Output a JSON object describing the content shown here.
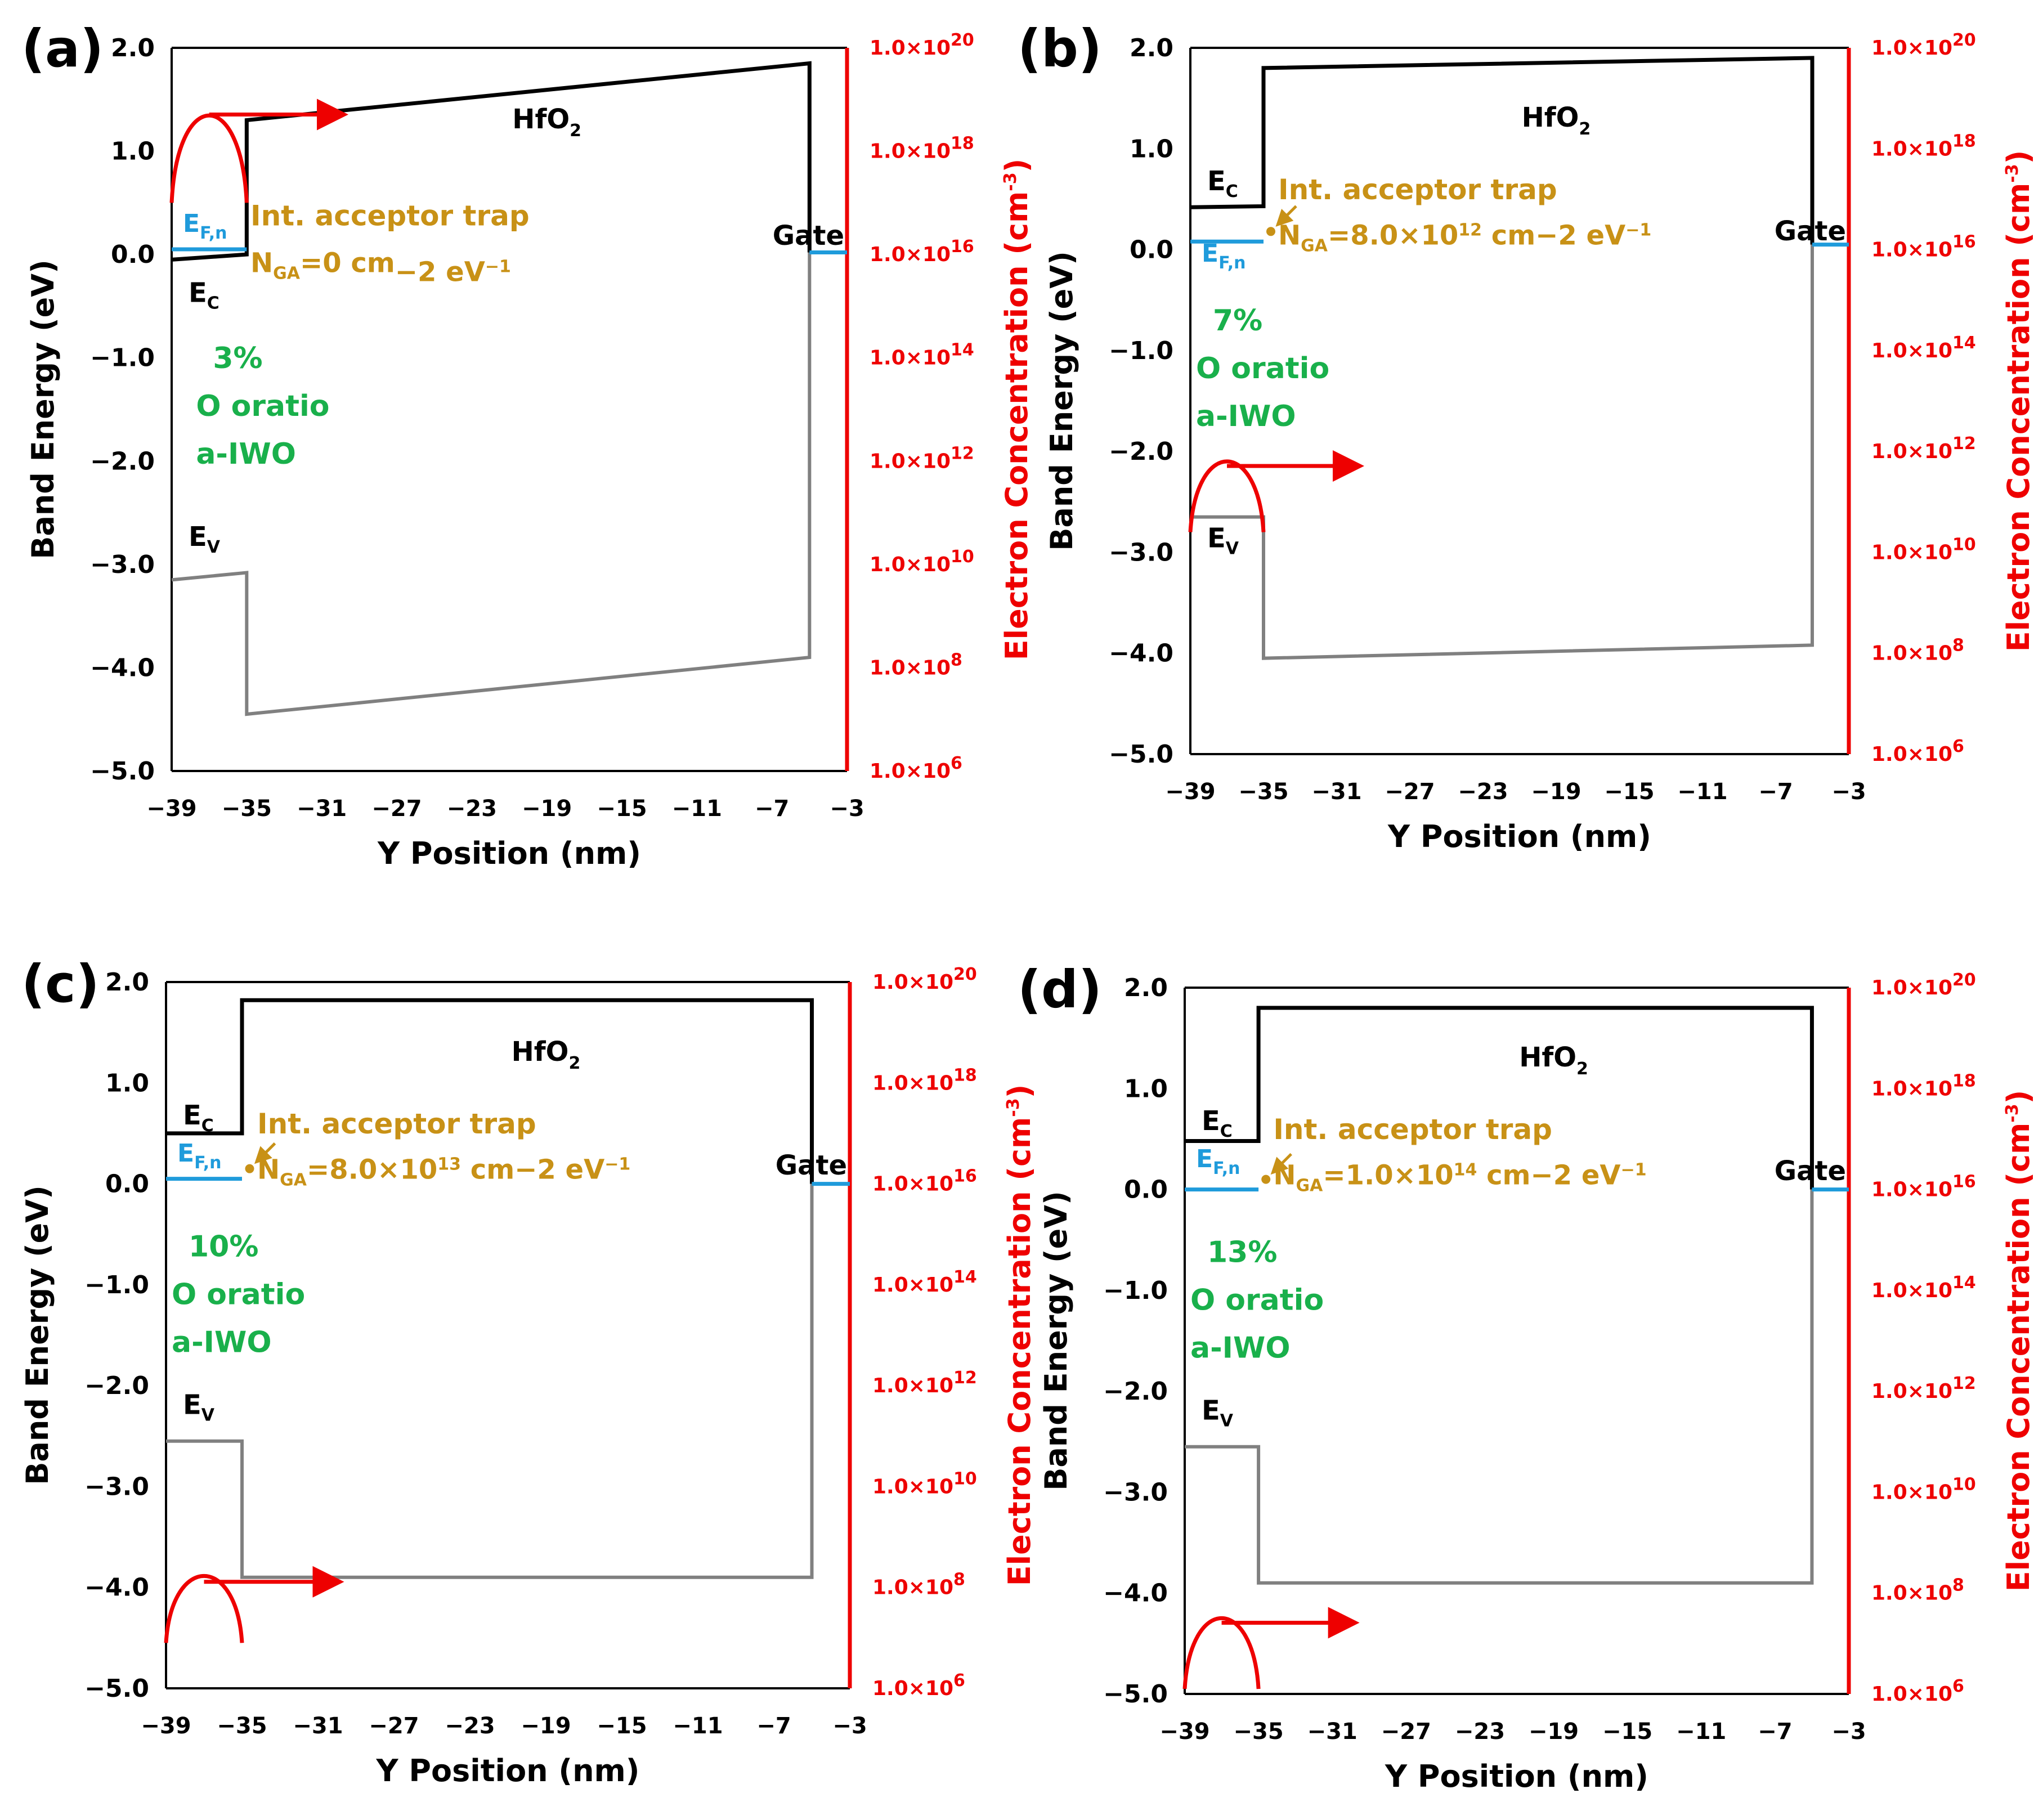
{
  "figure": {
    "axis_titles": {
      "xlabel": "Y Position (nm)",
      "ylabel": "Band Energy (eV)",
      "y2label": "Electron Concentration (cm",
      "y2label_exp": "-3",
      "y2label_close": ")"
    },
    "annotation_text": {
      "hfo2": "HfO",
      "hfo2_sub": "2",
      "ec": "E",
      "ec_sub": "C",
      "ev": "E",
      "ev_sub": "V",
      "efn": "E",
      "efn_sub": "F,n",
      "gate": "Gate",
      "trap_line1": "Int. acceptor trap",
      "nga_n": "N",
      "nga_sub": "GA",
      "o_ratio": "O oratio",
      "material": "a-IWO"
    }
  },
  "colors": {
    "conduction_band": "#000000",
    "valence_band": "#808080",
    "fermi_level": "#1f9bdb",
    "electron_concentration": "#ee0000",
    "trap_annotation": "#c89116",
    "oxygen_label": "#19b04b"
  },
  "chart_data": [
    {
      "panel": "(a)",
      "type": "line",
      "xlabel": "Y Position (nm)",
      "ylabel": "Band Energy (eV)",
      "y2label": "Electron Concentration (cm-3)",
      "xlim": [
        -39,
        -3
      ],
      "ylim": [
        -5,
        2
      ],
      "x_ticks": [
        "−39",
        "−35",
        "−31",
        "−27",
        "−23",
        "−19",
        "−15",
        "−11",
        "−7",
        "−3"
      ],
      "y_ticks": [
        "2.0",
        "1.0",
        "0.0",
        "−1.0",
        "−2.0",
        "−3.0",
        "−4.0",
        "−5.0"
      ],
      "y2_ticks": [
        {
          "mant": "1.0×10",
          "exp": "20"
        },
        {
          "mant": "1.0×10",
          "exp": "18"
        },
        {
          "mant": "1.0×10",
          "exp": "16"
        },
        {
          "mant": "1.0×10",
          "exp": "14"
        },
        {
          "mant": "1.0×10",
          "exp": "12"
        },
        {
          "mant": "1.0×10",
          "exp": "10"
        },
        {
          "mant": "1.0×10",
          "exp": "8"
        },
        {
          "mant": "1.0×10",
          "exp": "6"
        }
      ],
      "o_ratio_percent": "3%",
      "nga_value": "=0 cm",
      "nga_exp": "",
      "nga_units": "−2",
      "nga_ev": " eV",
      "nga_ev_exp": "−1",
      "series": [
        {
          "name": "E_C",
          "x": [
            -39,
            -35,
            -35,
            -5,
            -5
          ],
          "y": [
            -0.05,
            0.0,
            1.3,
            1.85,
            0.02
          ]
        },
        {
          "name": "E_V",
          "x": [
            -39,
            -35,
            -35,
            -5,
            -5
          ],
          "y": [
            -3.15,
            -3.08,
            -4.45,
            -3.9,
            0.02
          ]
        },
        {
          "name": "E_F,n",
          "x": [
            -39,
            -35
          ],
          "y": [
            0.05,
            0.05
          ]
        },
        {
          "name": "E_F,gate",
          "x": [
            -5,
            -3
          ],
          "y": [
            0.02,
            0.02
          ]
        }
      ]
    },
    {
      "panel": "(b)",
      "type": "line",
      "xlabel": "Y Position (nm)",
      "ylabel": "Band Energy (eV)",
      "y2label": "Electron Concentration (cm-3)",
      "xlim": [
        -39,
        -3
      ],
      "ylim": [
        -5,
        2
      ],
      "x_ticks": [
        "−39",
        "−35",
        "−31",
        "−27",
        "−23",
        "−19",
        "−15",
        "−11",
        "−7",
        "−3"
      ],
      "y_ticks": [
        "2.0",
        "1.0",
        "0.0",
        "−1.0",
        "−2.0",
        "−3.0",
        "−4.0",
        "−5.0"
      ],
      "y2_ticks": [
        {
          "mant": "1.0×10",
          "exp": "20"
        },
        {
          "mant": "1.0×10",
          "exp": "18"
        },
        {
          "mant": "1.0×10",
          "exp": "16"
        },
        {
          "mant": "1.0×10",
          "exp": "14"
        },
        {
          "mant": "1.0×10",
          "exp": "12"
        },
        {
          "mant": "1.0×10",
          "exp": "10"
        },
        {
          "mant": "1.0×10",
          "exp": "8"
        },
        {
          "mant": "1.0×10",
          "exp": "6"
        }
      ],
      "o_ratio_percent": "7%",
      "nga_value": "=8.0×10",
      "nga_exp": "12",
      "nga_units": " cm−2",
      "nga_ev": " eV",
      "nga_ev_exp": "−1",
      "series": [
        {
          "name": "E_C",
          "x": [
            -39,
            -35,
            -35,
            -5,
            -5
          ],
          "y": [
            0.42,
            0.43,
            1.8,
            1.9,
            0.05
          ]
        },
        {
          "name": "E_V",
          "x": [
            -39,
            -35,
            -35,
            -5,
            -5
          ],
          "y": [
            -2.65,
            -2.65,
            -4.05,
            -3.92,
            0.05
          ]
        },
        {
          "name": "E_F,n",
          "x": [
            -39,
            -35
          ],
          "y": [
            0.08,
            0.08
          ]
        },
        {
          "name": "E_F,gate",
          "x": [
            -5,
            -3
          ],
          "y": [
            0.05,
            0.05
          ]
        }
      ]
    },
    {
      "panel": "(c)",
      "type": "line",
      "xlabel": "Y Position (nm)",
      "ylabel": "Band Energy (eV)",
      "y2label": "Electron Concentration (cm-3)",
      "xlim": [
        -39,
        -3
      ],
      "ylim": [
        -5,
        2
      ],
      "x_ticks": [
        "−39",
        "−35",
        "−31",
        "−27",
        "−23",
        "−19",
        "−15",
        "−11",
        "−7",
        "−3"
      ],
      "y_ticks": [
        "2.0",
        "1.0",
        "0.0",
        "−1.0",
        "−2.0",
        "−3.0",
        "−4.0",
        "−5.0"
      ],
      "y2_ticks": [
        {
          "mant": "1.0×10",
          "exp": "20"
        },
        {
          "mant": "1.0×10",
          "exp": "18"
        },
        {
          "mant": "1.0×10",
          "exp": "16"
        },
        {
          "mant": "1.0×10",
          "exp": "14"
        },
        {
          "mant": "1.0×10",
          "exp": "12"
        },
        {
          "mant": "1.0×10",
          "exp": "10"
        },
        {
          "mant": "1.0×10",
          "exp": "8"
        },
        {
          "mant": "1.0×10",
          "exp": "6"
        }
      ],
      "o_ratio_percent": "10%",
      "nga_value": "=8.0×10",
      "nga_exp": "13",
      "nga_units": " cm−2",
      "nga_ev": " eV",
      "nga_ev_exp": "−1",
      "series": [
        {
          "name": "E_C",
          "x": [
            -39,
            -35,
            -35,
            -5,
            -5
          ],
          "y": [
            0.5,
            0.5,
            1.82,
            1.82,
            0.0
          ]
        },
        {
          "name": "E_V",
          "x": [
            -39,
            -35,
            -35,
            -5,
            -5
          ],
          "y": [
            -2.55,
            -2.55,
            -3.9,
            -3.9,
            0.0
          ]
        },
        {
          "name": "E_F,n",
          "x": [
            -39,
            -35
          ],
          "y": [
            0.05,
            0.05
          ]
        },
        {
          "name": "E_F,gate",
          "x": [
            -5,
            -3
          ],
          "y": [
            0.0,
            0.0
          ]
        }
      ]
    },
    {
      "panel": "(d)",
      "type": "line",
      "xlabel": "Y Position (nm)",
      "ylabel": "Band Energy (eV)",
      "y2label": "Electron Concentration (cm-3)",
      "xlim": [
        -39,
        -3
      ],
      "ylim": [
        -5,
        2
      ],
      "x_ticks": [
        "−39",
        "−35",
        "−31",
        "−27",
        "−23",
        "−19",
        "−15",
        "−11",
        "−7",
        "−3"
      ],
      "y_ticks": [
        "2.0",
        "1.0",
        "0.0",
        "−1.0",
        "−2.0",
        "−3.0",
        "−4.0",
        "−5.0"
      ],
      "y2_ticks": [
        {
          "mant": "1.0×10",
          "exp": "20"
        },
        {
          "mant": "1.0×10",
          "exp": "18"
        },
        {
          "mant": "1.0×10",
          "exp": "16"
        },
        {
          "mant": "1.0×10",
          "exp": "14"
        },
        {
          "mant": "1.0×10",
          "exp": "12"
        },
        {
          "mant": "1.0×10",
          "exp": "10"
        },
        {
          "mant": "1.0×10",
          "exp": "8"
        },
        {
          "mant": "1.0×10",
          "exp": "6"
        }
      ],
      "o_ratio_percent": "13%",
      "nga_value": "=1.0×10",
      "nga_exp": "14",
      "nga_units": " cm−2",
      "nga_ev": " eV",
      "nga_ev_exp": "−1",
      "series": [
        {
          "name": "E_C",
          "x": [
            -39,
            -35,
            -35,
            -5,
            -5
          ],
          "y": [
            0.48,
            0.48,
            1.8,
            1.8,
            0.0
          ]
        },
        {
          "name": "E_V",
          "x": [
            -39,
            -35,
            -35,
            -5,
            -5
          ],
          "y": [
            -2.55,
            -2.55,
            -3.9,
            -3.9,
            0.0
          ]
        },
        {
          "name": "E_F,n",
          "x": [
            -39,
            -35
          ],
          "y": [
            0.0,
            0.0
          ]
        },
        {
          "name": "E_F,gate",
          "x": [
            -5,
            -3
          ],
          "y": [
            0.0,
            0.0
          ]
        }
      ]
    }
  ]
}
